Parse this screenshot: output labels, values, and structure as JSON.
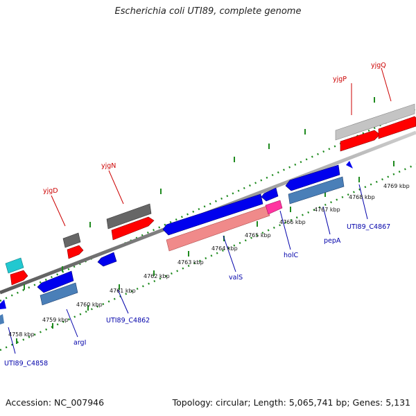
{
  "title": "Escherichia coli UTI89, complete genome",
  "footer": {
    "accession": "Accession: NC_007946",
    "summary": "Topology: circular; Length: 5,065,741 bp; Genes: 5,131"
  },
  "colors": {
    "backbone": "#8c8c8c",
    "ticks": "#1e8a1e",
    "label_upper": "#cc0000",
    "label_lower": "#0000aa",
    "forward_cds": "#ff0000",
    "forward_gene": "#666666",
    "reverse_cds": "#0000ee",
    "reverse_gene": "#4a7fb8",
    "valS_gene": "#f08a8a",
    "holC_gene": "#ff33a0",
    "cyan_feature": "#22c8d0",
    "light_gene": "#c4c4c4"
  },
  "scale_labels": [
    "4758 kbp",
    "4759 kbp",
    "4760 kbp",
    "4761 kbp",
    "4762 kbp",
    "4763 kbp",
    "4764 kbp",
    "4765 kbp",
    "4766 kbp",
    "4767 kbp",
    "4768 kbp",
    "4769 kbp"
  ],
  "gene_labels_upper": [
    "yjgD",
    "yjgN",
    "yjgP",
    "yjgQ"
  ],
  "gene_labels_lower": [
    "UTI89_C4858",
    "argI",
    "UTI89_C4862",
    "valS",
    "holC",
    "pepA",
    "UTI89_C4867"
  ]
}
